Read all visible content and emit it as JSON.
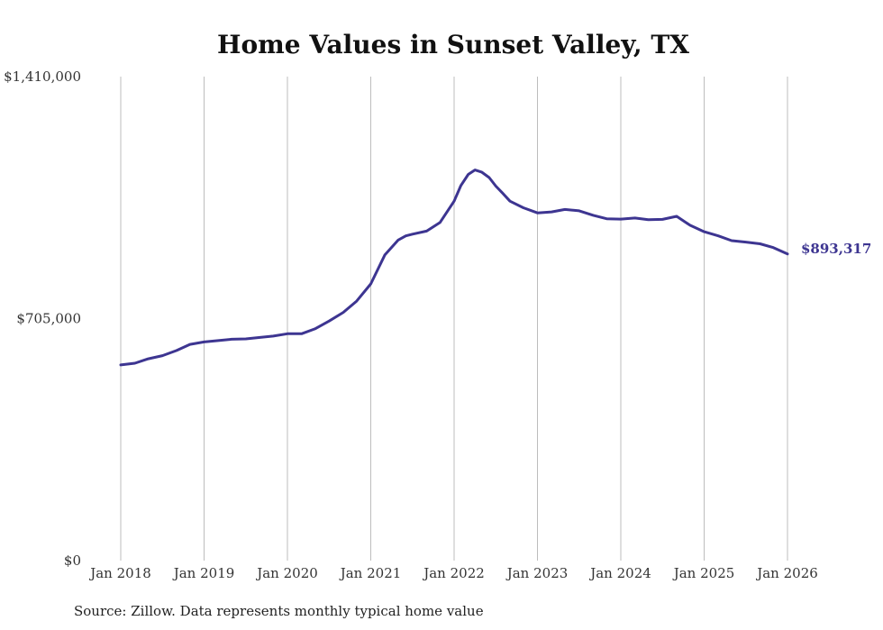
{
  "chart_data": {
    "type": "line",
    "title": "Home Values in Sunset Valley, TX",
    "xlabel": "",
    "ylabel": "",
    "source": "Source: Zillow. Data represents monthly typical home value",
    "ylim": [
      0,
      1410000
    ],
    "y_ticks": [
      {
        "value": 0,
        "label": "$0"
      },
      {
        "value": 705000,
        "label": "$705,000"
      },
      {
        "value": 1410000,
        "label": "$1,410,000"
      }
    ],
    "x_ticks": [
      {
        "value": 2018,
        "label": "Jan 2018"
      },
      {
        "value": 2019,
        "label": "Jan 2019"
      },
      {
        "value": 2020,
        "label": "Jan 2020"
      },
      {
        "value": 2021,
        "label": "Jan 2021"
      },
      {
        "value": 2022,
        "label": "Jan 2022"
      },
      {
        "value": 2023,
        "label": "Jan 2023"
      },
      {
        "value": 2024,
        "label": "Jan 2024"
      },
      {
        "value": 2025,
        "label": "Jan 2025"
      },
      {
        "value": 2026,
        "label": "Jan 2026"
      }
    ],
    "grid": true,
    "line_color": "#3d3591",
    "end_label": "$893,317",
    "series": [
      {
        "name": "Typical home value",
        "x": [
          2018.0,
          2018.17,
          2018.33,
          2018.5,
          2018.67,
          2018.83,
          2019.0,
          2019.17,
          2019.33,
          2019.5,
          2019.67,
          2019.83,
          2020.0,
          2020.17,
          2020.33,
          2020.5,
          2020.67,
          2020.83,
          2021.0,
          2021.17,
          2021.33,
          2021.42,
          2021.5,
          2021.67,
          2021.83,
          2022.0,
          2022.08,
          2022.17,
          2022.25,
          2022.33,
          2022.42,
          2022.5,
          2022.58,
          2022.67,
          2022.83,
          2023.0,
          2023.17,
          2023.33,
          2023.5,
          2023.67,
          2023.83,
          2024.0,
          2024.17,
          2024.33,
          2024.5,
          2024.67,
          2024.83,
          2025.0,
          2025.17,
          2025.33,
          2025.5,
          2025.67,
          2025.83,
          2026.0
        ],
        "values": [
          570000,
          575000,
          588000,
          597000,
          612000,
          630000,
          637000,
          641000,
          645000,
          646000,
          650000,
          654000,
          661000,
          661000,
          675000,
          698000,
          723000,
          756000,
          806000,
          891000,
          934000,
          946000,
          951000,
          960000,
          985000,
          1047000,
          1092000,
          1125000,
          1138000,
          1132000,
          1116000,
          1091000,
          1071000,
          1047000,
          1028000,
          1013000,
          1016000,
          1023000,
          1019000,
          1006000,
          996000,
          995000,
          998000,
          993000,
          994000,
          1003000,
          977000,
          958000,
          946000,
          932000,
          928000,
          923000,
          912000,
          893317
        ]
      }
    ]
  }
}
